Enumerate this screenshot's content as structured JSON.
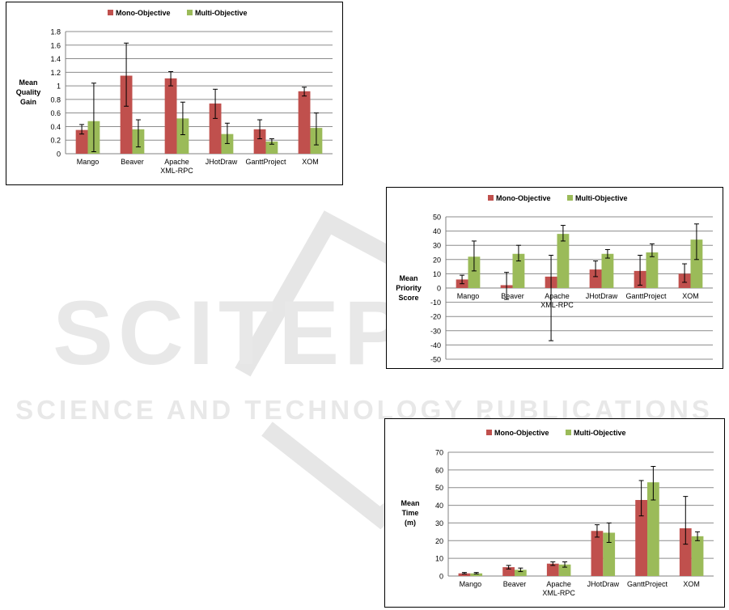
{
  "watermark": {
    "brand": "SCITEPRESS",
    "tagline": "SCIENCE AND TECHNOLOGY PUBLICATIONS"
  },
  "colors": {
    "mono": "#c0504d",
    "multi": "#9bbb59",
    "grid": "#8c8c8c",
    "text": "#000000"
  },
  "chart_data": [
    {
      "type": "bar",
      "ylabel": [
        "Mean",
        "Quality",
        "Gain"
      ],
      "legend_position": "top",
      "grid": true,
      "categories": [
        [
          "Mango"
        ],
        [
          "Beaver"
        ],
        [
          "Apache",
          "XML-RPC"
        ],
        [
          "JHotDraw"
        ],
        [
          "GanttProject"
        ],
        [
          "XOM"
        ]
      ],
      "ylim": [
        0,
        1.8
      ],
      "yticks": [
        0,
        0.2,
        0.4,
        0.6,
        0.8,
        1,
        1.2,
        1.4,
        1.6,
        1.8
      ],
      "ytick_labels": [
        "0",
        "0.2",
        "0.4",
        "0.6",
        "0.8",
        "1",
        "1.2",
        "1.4",
        "1.6",
        "1.8"
      ],
      "series": [
        {
          "name": "Mono-Objective",
          "values": [
            0.35,
            1.15,
            1.11,
            0.74,
            0.36,
            0.92
          ],
          "err_low": [
            0.29,
            0.7,
            1.0,
            0.52,
            0.22,
            0.85
          ],
          "err_high": [
            0.43,
            1.63,
            1.21,
            0.95,
            0.5,
            0.98
          ]
        },
        {
          "name": "Multi-Objective",
          "values": [
            0.48,
            0.36,
            0.52,
            0.29,
            0.18,
            0.38
          ],
          "err_low": [
            0.03,
            0.1,
            0.28,
            0.15,
            0.14,
            0.13
          ],
          "err_high": [
            1.04,
            0.5,
            0.76,
            0.45,
            0.22,
            0.6
          ]
        }
      ]
    },
    {
      "type": "bar",
      "ylabel": [
        "Mean",
        "Priority",
        "Score"
      ],
      "legend_position": "top",
      "grid": true,
      "categories": [
        [
          "Mango"
        ],
        [
          "Beaver"
        ],
        [
          "Apache",
          "XML-RPC"
        ],
        [
          "JHotDraw"
        ],
        [
          "GanttProject"
        ],
        [
          "XOM"
        ]
      ],
      "ylim": [
        -50,
        50
      ],
      "yticks": [
        -50,
        -40,
        -30,
        -20,
        -10,
        0,
        10,
        20,
        30,
        40,
        50
      ],
      "ytick_labels": [
        "-50",
        "-40",
        "-30",
        "-20",
        "-10",
        "0",
        "10",
        "20",
        "30",
        "40",
        "50"
      ],
      "series": [
        {
          "name": "Mono-Objective",
          "values": [
            6,
            2,
            8,
            13,
            12,
            10
          ],
          "err_low": [
            3,
            -8,
            -37,
            8,
            2,
            4
          ],
          "err_high": [
            9,
            11,
            23,
            19,
            23,
            17
          ]
        },
        {
          "name": "Multi-Objective",
          "values": [
            22,
            24,
            38,
            24,
            25,
            34
          ],
          "err_low": [
            12,
            19,
            33,
            21,
            22,
            20
          ],
          "err_high": [
            33,
            30,
            44,
            27,
            31,
            45
          ]
        }
      ]
    },
    {
      "type": "bar",
      "ylabel": [
        "Mean",
        "Time",
        "(m)"
      ],
      "legend_position": "top",
      "grid": true,
      "categories": [
        [
          "Mango"
        ],
        [
          "Beaver"
        ],
        [
          "Apache",
          "XML-RPC"
        ],
        [
          "JHotDraw"
        ],
        [
          "GanttProject"
        ],
        [
          "XOM"
        ]
      ],
      "ylim": [
        0,
        70
      ],
      "yticks": [
        0,
        10,
        20,
        30,
        40,
        50,
        60,
        70
      ],
      "ytick_labels": [
        "0",
        "10",
        "20",
        "30",
        "40",
        "50",
        "60",
        "70"
      ],
      "series": [
        {
          "name": "Mono-Objective",
          "values": [
            1.5,
            5,
            7,
            25.5,
            43,
            27
          ],
          "err_low": [
            1.2,
            4,
            6,
            22,
            34,
            18
          ],
          "err_high": [
            2,
            6,
            8,
            29,
            54,
            45
          ]
        },
        {
          "name": "Multi-Objective",
          "values": [
            1.5,
            3.5,
            6.5,
            24.5,
            53,
            22.5
          ],
          "err_low": [
            1.2,
            2.5,
            5,
            19,
            43,
            20
          ],
          "err_high": [
            2,
            4.5,
            8,
            30,
            62,
            25
          ]
        }
      ]
    }
  ]
}
